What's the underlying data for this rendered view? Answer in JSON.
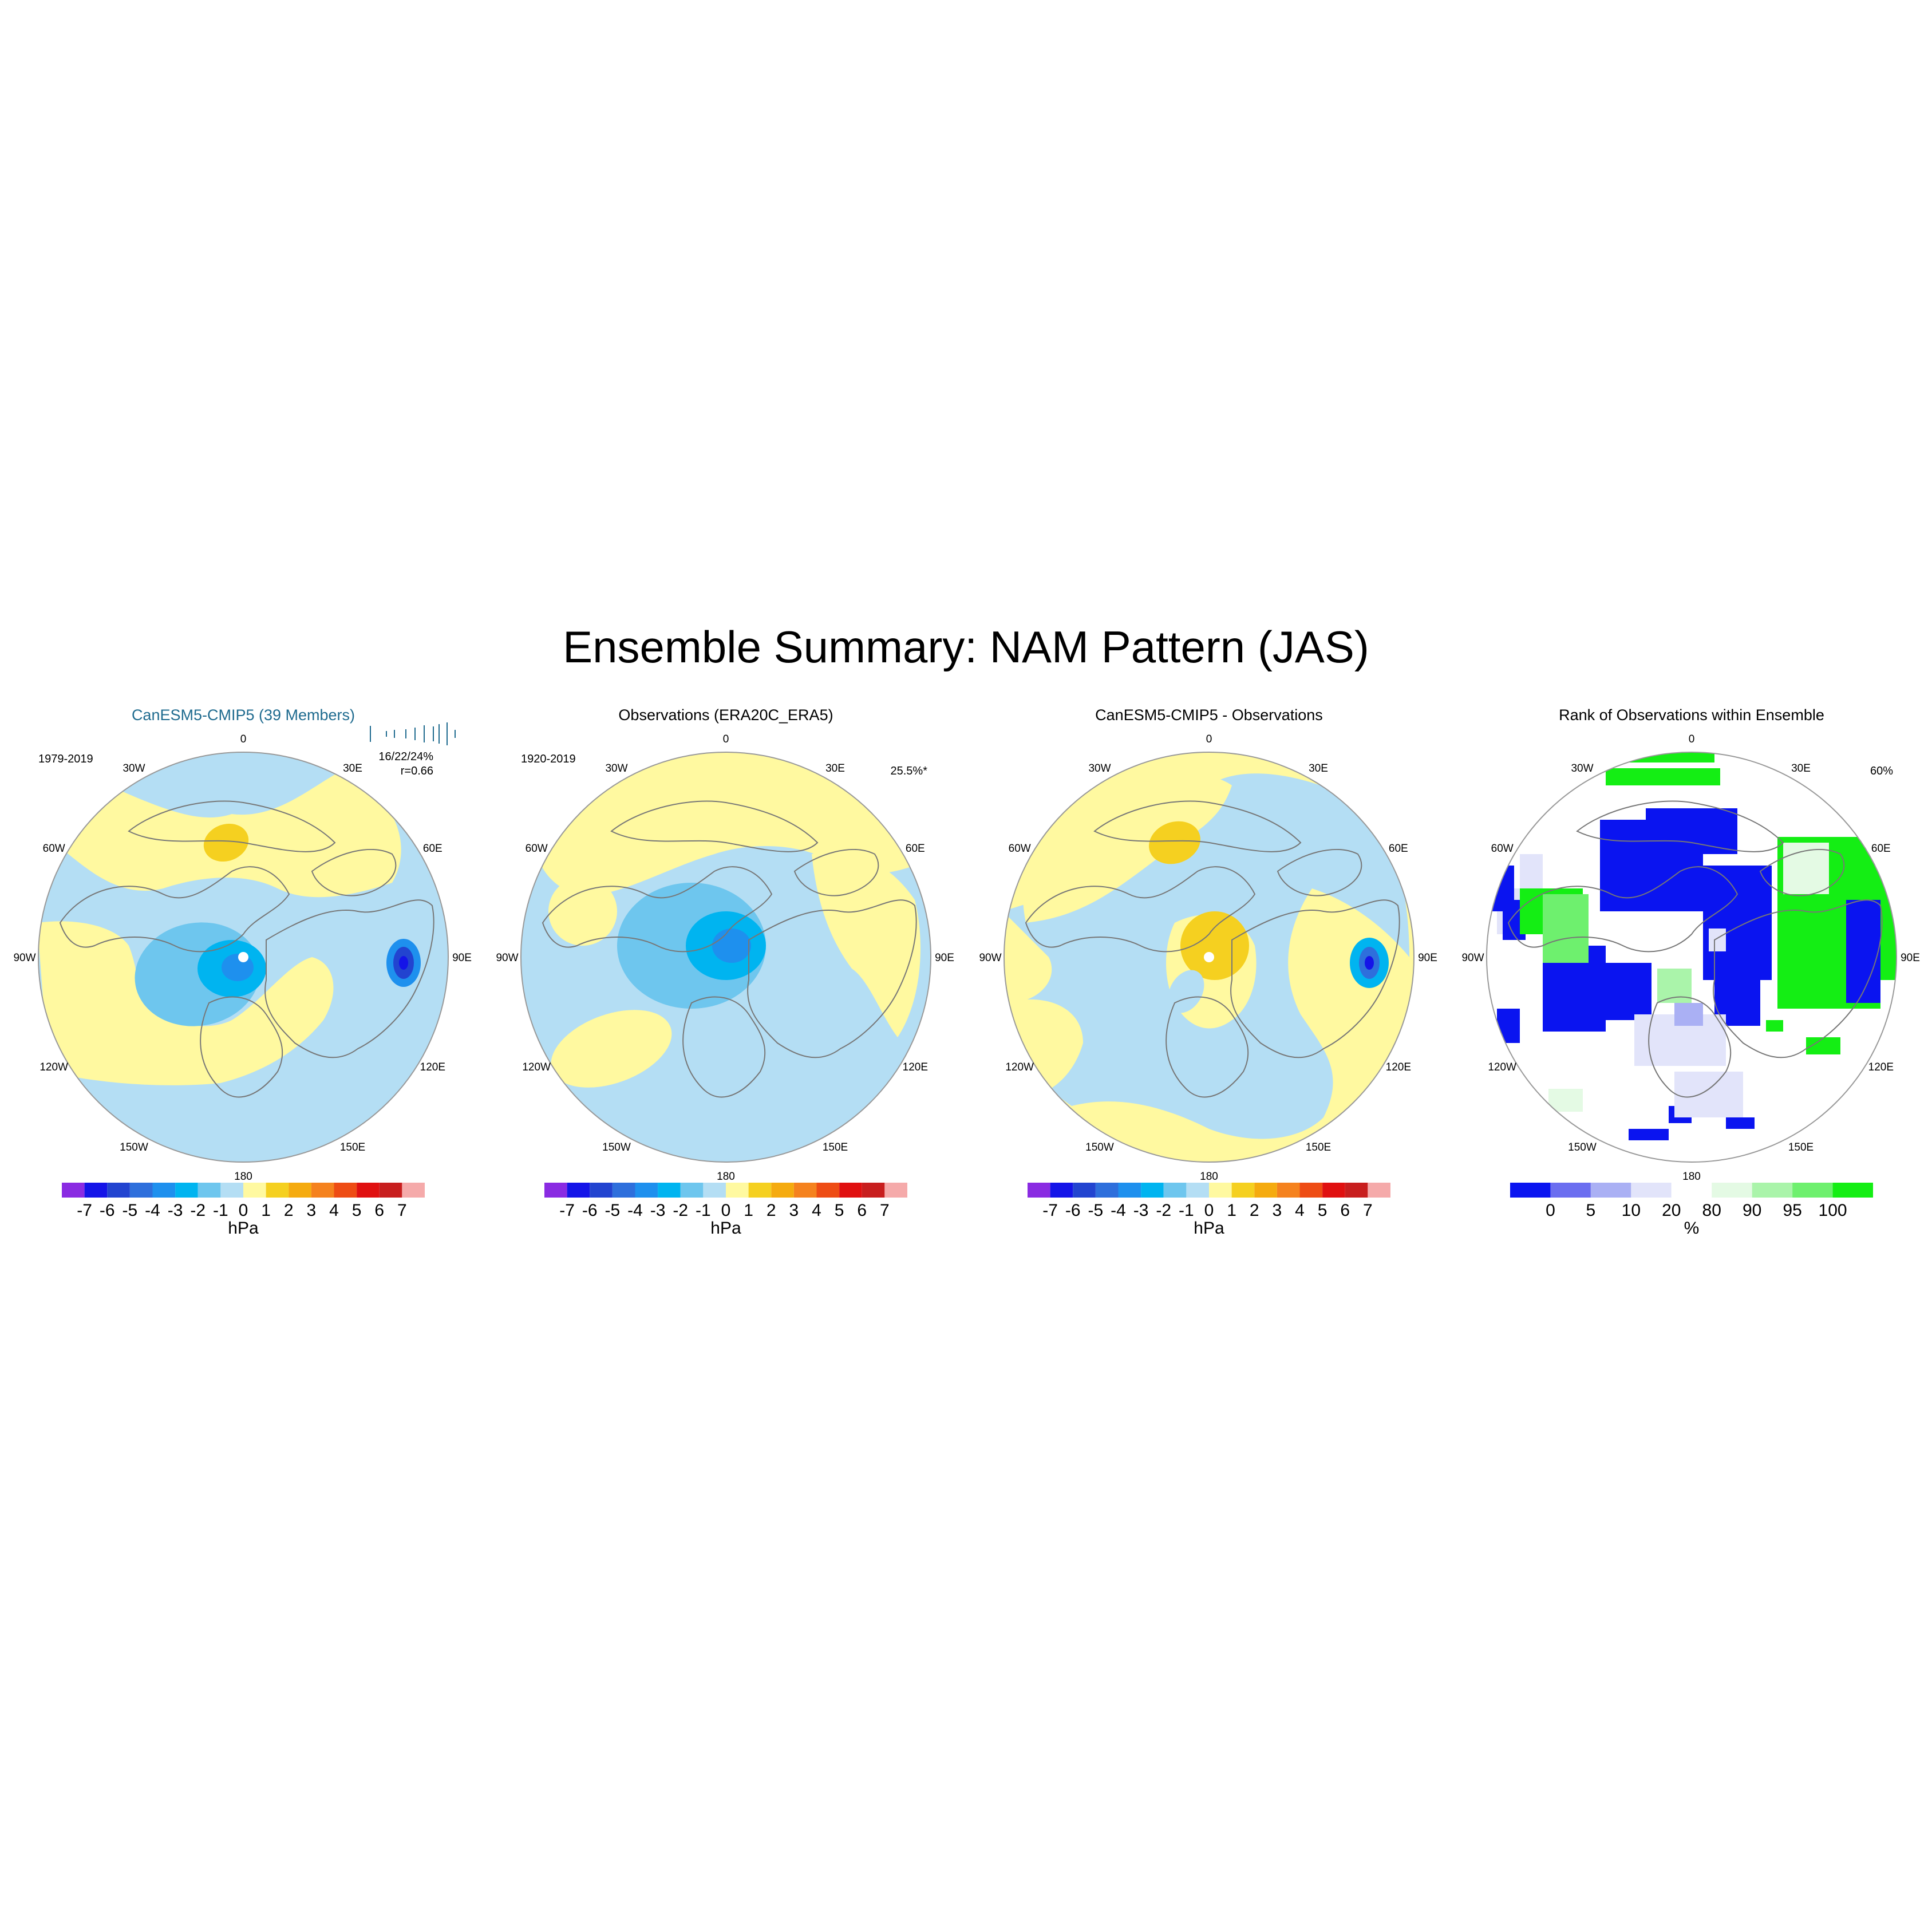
{
  "title": "Ensemble Summary: NAM Pattern (JAS)",
  "panels": [
    {
      "id": "model",
      "title": "CanESM5-CMIP5 (39 Members)",
      "title_color": "#1f6b8f",
      "period": "1979-2019",
      "stats": "16/22/24%",
      "corr": "r=0.66",
      "pct": "",
      "units": "hPa",
      "cbar_labels": [
        "-7",
        "-6",
        "-5",
        "-4",
        "-3",
        "-2",
        "-1",
        "0",
        "1",
        "2",
        "3",
        "4",
        "5",
        "6",
        "7"
      ]
    },
    {
      "id": "obs",
      "title": "Observations (ERA20C_ERA5)",
      "title_color": "#000000",
      "period": "1920-2019",
      "stats": "",
      "corr": "",
      "pct": "25.5%*",
      "units": "hPa",
      "cbar_labels": [
        "-7",
        "-6",
        "-5",
        "-4",
        "-3",
        "-2",
        "-1",
        "0",
        "1",
        "2",
        "3",
        "4",
        "5",
        "6",
        "7"
      ]
    },
    {
      "id": "diff",
      "title": "CanESM5-CMIP5 - Observations",
      "title_color": "#000000",
      "period": "",
      "stats": "",
      "corr": "",
      "pct": "",
      "units": "hPa",
      "cbar_labels": [
        "-7",
        "-6",
        "-5",
        "-4",
        "-3",
        "-2",
        "-1",
        "0",
        "1",
        "2",
        "3",
        "4",
        "5",
        "6",
        "7"
      ]
    },
    {
      "id": "rank",
      "title": "Rank of Observations within Ensemble",
      "title_color": "#000000",
      "period": "",
      "stats": "",
      "corr": "",
      "pct": "60%",
      "units": "%",
      "cbar_labels": [
        "0",
        "5",
        "10",
        "20",
        "80",
        "90",
        "95",
        "100"
      ]
    }
  ],
  "longitude_labels": [
    "180",
    "150W",
    "120W",
    "90W",
    "60W",
    "30W",
    "0",
    "30E",
    "60E",
    "90E",
    "120E",
    "150E"
  ],
  "colors": {
    "hpa_scale": [
      "#8a2be2",
      "#1414e8",
      "#2244d0",
      "#2e6fdc",
      "#1e90ee",
      "#00b4f0",
      "#6ec6ee",
      "#b4def4",
      "#fff9a0",
      "#f5d020",
      "#f5ab0f",
      "#f5821e",
      "#ee4c14",
      "#e01010",
      "#c81e1e",
      "#f5aaaa"
    ],
    "rank_scale": [
      "#0a14f0",
      "#6b6ef0",
      "#aab0f4",
      "#e2e4fa",
      "#ffffff",
      "#e4fae4",
      "#aaf4aa",
      "#6ef06e",
      "#14ee14"
    ]
  }
}
